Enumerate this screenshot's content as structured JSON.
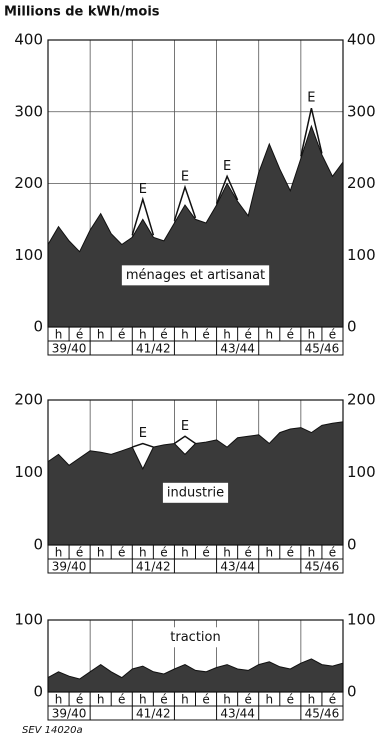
{
  "chart_data": [
    {
      "type": "area",
      "title": "Millions de kWh/mois",
      "label": "ménages et artisanat",
      "categories": [
        "h",
        "é",
        "h",
        "é",
        "h",
        "é",
        "h",
        "é",
        "h",
        "é",
        "h",
        "é",
        "h",
        "é"
      ],
      "periods": [
        "39/40",
        null,
        "41/42",
        null,
        "43/44",
        null,
        "45/46"
      ],
      "x": [
        0,
        0.5,
        1,
        1.5,
        2,
        2.5,
        3,
        3.5,
        4,
        4.5,
        5,
        5.5,
        6,
        6.5,
        7,
        7.5,
        8,
        8.5,
        9,
        9.5,
        10,
        10.5,
        11,
        11.5,
        12,
        12.5,
        13,
        13.5,
        14
      ],
      "xlim": [
        0,
        14
      ],
      "ylim": [
        0,
        400
      ],
      "yticks": [
        0,
        100,
        200,
        300,
        400
      ],
      "grid": true,
      "series": [
        {
          "name": "ménages et artisanat",
          "color": "#3a3a3a",
          "values": [
            115,
            140,
            120,
            105,
            135,
            158,
            130,
            115,
            125,
            150,
            125,
            120,
            145,
            170,
            150,
            145,
            170,
            200,
            175,
            155,
            215,
            255,
            220,
            190,
            235,
            280,
            240,
            210,
            230
          ]
        },
        {
          "name": "E",
          "color": "#111111",
          "values": [
            null,
            null,
            null,
            null,
            null,
            null,
            null,
            null,
            128,
            178,
            128,
            null,
            148,
            195,
            152,
            null,
            172,
            210,
            177,
            null,
            null,
            null,
            null,
            null,
            238,
            305,
            242,
            null,
            null
          ]
        }
      ]
    },
    {
      "type": "area",
      "label": "industrie",
      "categories": [
        "h",
        "é",
        "h",
        "é",
        "h",
        "é",
        "h",
        "é",
        "h",
        "é",
        "h",
        "é",
        "h",
        "é"
      ],
      "periods": [
        "39/40",
        null,
        "41/42",
        null,
        "43/44",
        null,
        "45/46"
      ],
      "x": [
        0,
        0.5,
        1,
        1.5,
        2,
        2.5,
        3,
        3.5,
        4,
        4.5,
        5,
        5.5,
        6,
        6.5,
        7,
        7.5,
        8,
        8.5,
        9,
        9.5,
        10,
        10.5,
        11,
        11.5,
        12,
        12.5,
        13,
        13.5,
        14
      ],
      "xlim": [
        0,
        14
      ],
      "ylim": [
        0,
        200
      ],
      "yticks": [
        0,
        100,
        200
      ],
      "grid": true,
      "series": [
        {
          "name": "industrie",
          "color": "#3a3a3a",
          "values": [
            115,
            125,
            110,
            120,
            130,
            128,
            125,
            130,
            135,
            105,
            135,
            138,
            140,
            125,
            140,
            142,
            145,
            135,
            148,
            150,
            152,
            140,
            155,
            160,
            162,
            155,
            165,
            168,
            170
          ]
        },
        {
          "name": "E",
          "color": "#111111",
          "values": [
            null,
            null,
            null,
            null,
            null,
            null,
            null,
            null,
            135,
            140,
            135,
            null,
            140,
            150,
            140,
            null,
            null,
            null,
            null,
            null,
            null,
            null,
            null,
            null,
            null,
            null,
            null,
            null,
            null
          ]
        }
      ]
    },
    {
      "type": "area",
      "label": "traction",
      "categories": [
        "h",
        "é",
        "h",
        "é",
        "h",
        "é",
        "h",
        "é",
        "h",
        "é",
        "h",
        "é",
        "h",
        "é"
      ],
      "periods": [
        "39/40",
        null,
        "41/42",
        null,
        "43/44",
        null,
        "45/46"
      ],
      "x": [
        0,
        0.5,
        1,
        1.5,
        2,
        2.5,
        3,
        3.5,
        4,
        4.5,
        5,
        5.5,
        6,
        6.5,
        7,
        7.5,
        8,
        8.5,
        9,
        9.5,
        10,
        10.5,
        11,
        11.5,
        12,
        12.5,
        13,
        13.5,
        14
      ],
      "xlim": [
        0,
        14
      ],
      "ylim": [
        0,
        100
      ],
      "yticks": [
        0,
        100
      ],
      "grid": true,
      "series": [
        {
          "name": "traction",
          "color": "#3a3a3a",
          "values": [
            20,
            28,
            22,
            18,
            28,
            38,
            28,
            20,
            32,
            36,
            28,
            25,
            32,
            38,
            30,
            28,
            34,
            38,
            32,
            30,
            38,
            42,
            35,
            32,
            40,
            46,
            38,
            36,
            40
          ]
        }
      ]
    }
  ],
  "footer": "SEV 14020a"
}
